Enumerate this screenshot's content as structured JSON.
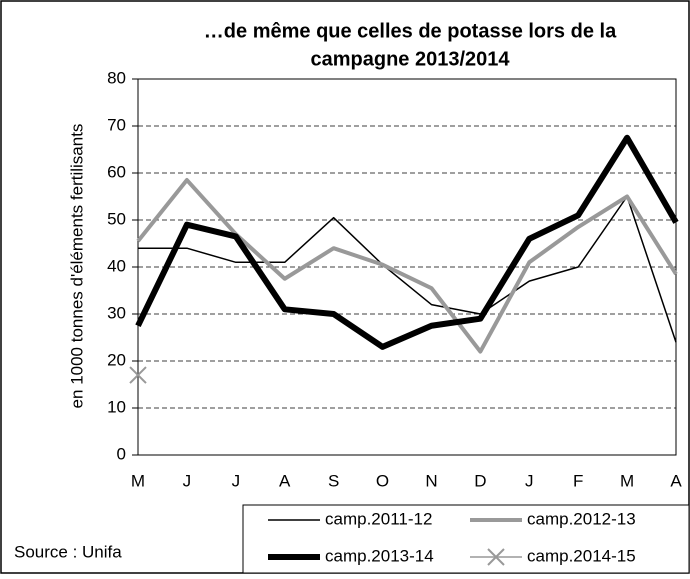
{
  "chart_data": {
    "type": "line",
    "title": [
      "…de même que celles de potasse lors de la",
      "campagne 2013/2014"
    ],
    "y_label": "en 1000 tonnes d'éléments fertilisants",
    "source": "Source : Unifa",
    "categories": [
      "M",
      "J",
      "J",
      "A",
      "S",
      "O",
      "N",
      "D",
      "J",
      "F",
      "M",
      "A"
    ],
    "ylim": [
      0,
      80
    ],
    "yticks": [
      0,
      10,
      20,
      30,
      40,
      50,
      60,
      70,
      80
    ],
    "grid": true,
    "series": [
      {
        "name": "camp.2011-12",
        "color": "#000000",
        "width": 1.5,
        "values": [
          44,
          44,
          41,
          41,
          50.5,
          40.5,
          32,
          30,
          37,
          40,
          55,
          24
        ]
      },
      {
        "name": "camp.2012-13",
        "color": "#999999",
        "width": 4,
        "values": [
          45.5,
          58.5,
          47,
          37.5,
          44,
          40.5,
          35.5,
          22,
          41,
          48.5,
          55,
          38.5
        ]
      },
      {
        "name": "camp.2013-14",
        "color": "#000000",
        "width": 6,
        "values": [
          27.5,
          49,
          46.5,
          31,
          30,
          23,
          27.5,
          29,
          46,
          51,
          67.5,
          49.5
        ]
      },
      {
        "name": "camp.2014-15",
        "color": "#999999",
        "width": 1.5,
        "marker": "x",
        "values": [
          17,
          null,
          null,
          null,
          null,
          null,
          null,
          null,
          null,
          null,
          null,
          null
        ]
      }
    ]
  }
}
